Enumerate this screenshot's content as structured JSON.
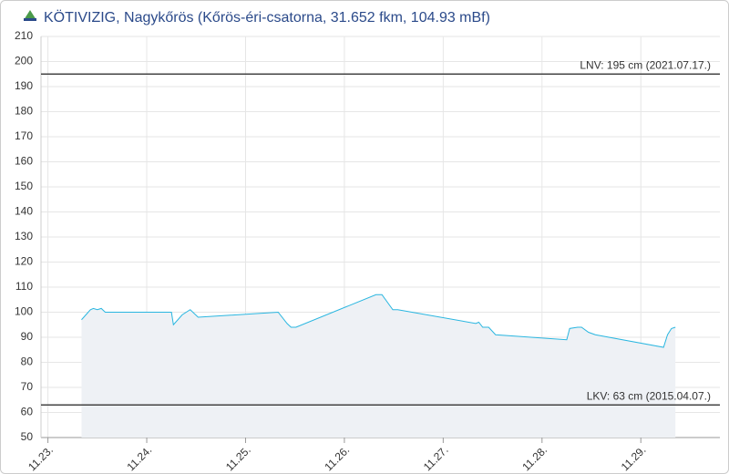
{
  "chart_data": {
    "type": "area",
    "title": "KÖTIVIZIG, Nagykőrös (Kőrös-éri-csatorna, 31.652 fkm, 104.93 mBf)",
    "x": [
      0.34,
      0.43,
      0.46,
      0.5,
      0.54,
      0.58,
      1.25,
      1.27,
      1.36,
      1.44,
      1.52,
      2.33,
      2.42,
      2.46,
      2.51,
      3.32,
      3.38,
      3.49,
      3.54,
      4.33,
      4.36,
      4.4,
      4.46,
      4.53,
      5.25,
      5.28,
      5.36,
      5.4,
      5.47,
      5.54,
      6.23,
      6.27,
      6.31,
      6.35
    ],
    "values": [
      97,
      101,
      101.5,
      101,
      101.5,
      100,
      100,
      95,
      99,
      101,
      98,
      100,
      95.5,
      94,
      94,
      107,
      107,
      101,
      101,
      95.5,
      96,
      94,
      94,
      91,
      89,
      93.5,
      94,
      94,
      92,
      91,
      86,
      91,
      93.5,
      94
    ],
    "color": "#29b6e0",
    "xlim": [
      -0.07,
      6.8
    ],
    "xticks": [
      {
        "value": 0,
        "label": "11.23."
      },
      {
        "value": 1,
        "label": "11.24."
      },
      {
        "value": 2,
        "label": "11.25."
      },
      {
        "value": 3,
        "label": "11.26."
      },
      {
        "value": 4,
        "label": "11.27."
      },
      {
        "value": 5,
        "label": "11.28."
      },
      {
        "value": 6,
        "label": "11.29."
      }
    ],
    "ylim": [
      50,
      210
    ],
    "yticks": [
      50,
      60,
      70,
      80,
      90,
      100,
      110,
      120,
      130,
      140,
      150,
      160,
      170,
      180,
      190,
      200,
      210
    ],
    "grid": true,
    "reference_lines": [
      {
        "value": 195,
        "label": "LNV: 195 cm (2021.07.17.)"
      },
      {
        "value": 63,
        "label": "LKV: 63 cm (2015.04.07.)"
      }
    ]
  }
}
